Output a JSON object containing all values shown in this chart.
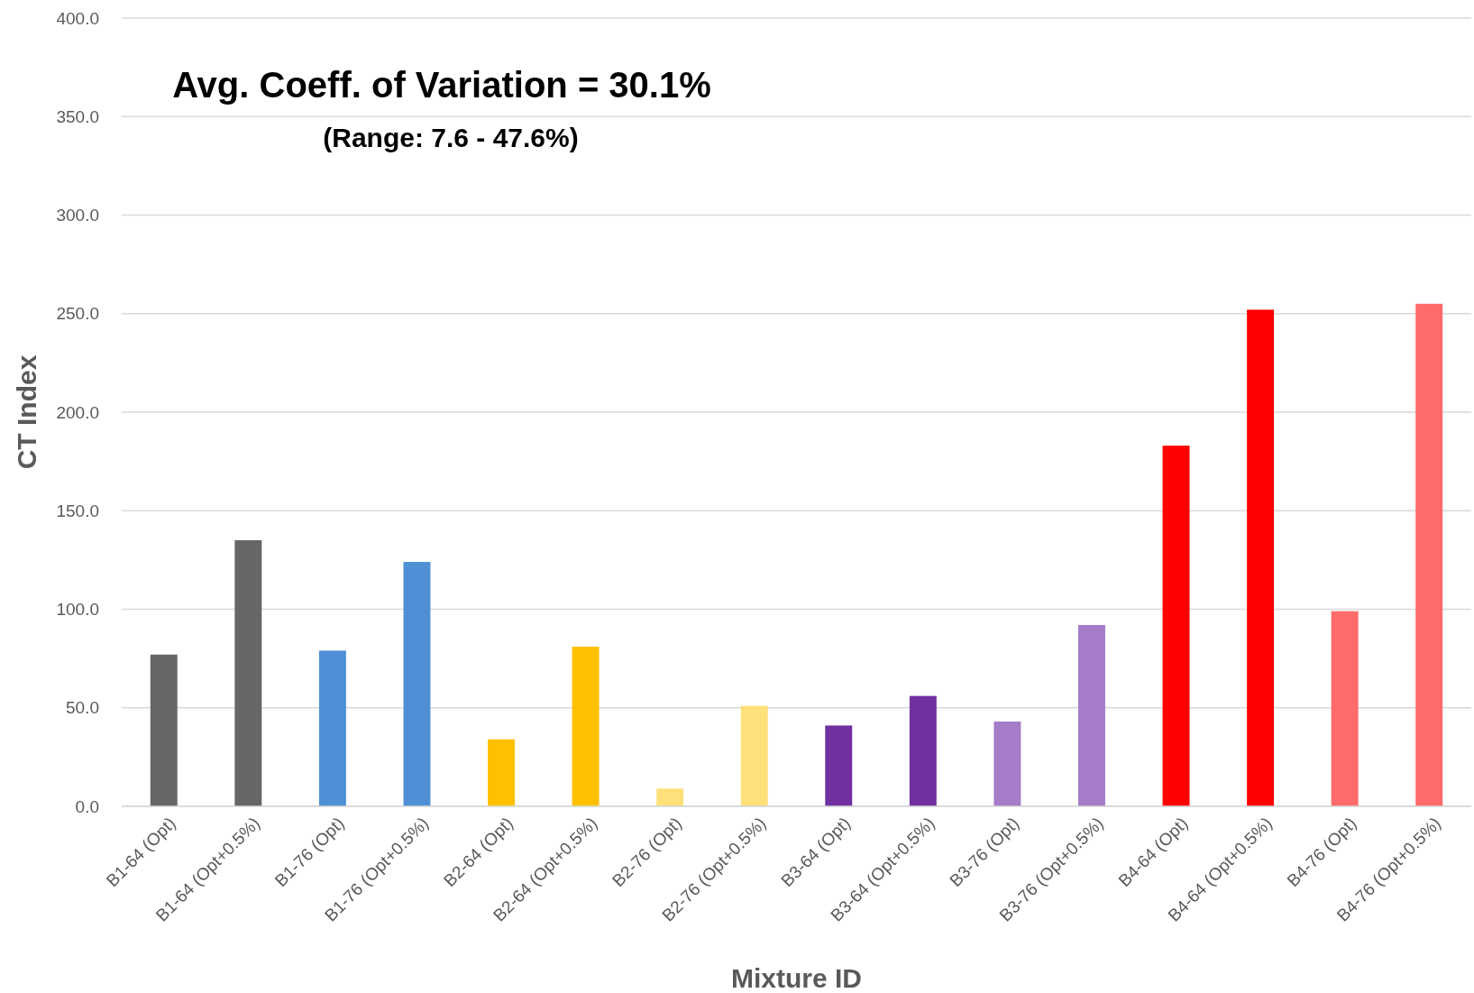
{
  "chart_data": {
    "type": "bar",
    "xlabel": "Mixture ID",
    "ylabel": "CT Index",
    "annotations": [
      "Avg. Coeff. of Variation = 30.1%",
      "(Range: 7.6 - 47.6%)"
    ],
    "categories": [
      "B1-64 (Opt)",
      "B1-64 (Opt+0.5%)",
      "B1-76 (Opt)",
      "B1-76 (Opt+0.5%)",
      "B2-64 (Opt)",
      "B2-64 (Opt+0.5%)",
      "B2-76 (Opt)",
      "B2-76 (Opt+0.5%)",
      "B3-64 (Opt)",
      "B3-64 (Opt+0.5%)",
      "B3-76 (Opt)",
      "B3-76 (Opt+0.5%)",
      "B4-64 (Opt)",
      "B4-64 (Opt+0.5%)",
      "B4-76 (Opt)",
      "B4-76 (Opt+0.5%)"
    ],
    "values": [
      77,
      135,
      79,
      124,
      34,
      81,
      9,
      51,
      41,
      56,
      43,
      92,
      183,
      252,
      99,
      255
    ],
    "colors": [
      "#666666",
      "#666666",
      "#4f8fd6",
      "#4f8fd6",
      "#ffc000",
      "#ffc000",
      "#ffe07a",
      "#ffe07a",
      "#7030a0",
      "#7030a0",
      "#a47cc8",
      "#a47cc8",
      "#ff0000",
      "#ff0000",
      "#ff6a6a",
      "#ff6a6a"
    ],
    "ylim": [
      0,
      400
    ],
    "yticks": [
      {
        "value": 0,
        "label": "0.0"
      },
      {
        "value": 50,
        "label": "50.0"
      },
      {
        "value": 100,
        "label": "100.0"
      },
      {
        "value": 150,
        "label": "150.0"
      },
      {
        "value": 200,
        "label": "200.0"
      },
      {
        "value": 250,
        "label": "250.0"
      },
      {
        "value": 300,
        "label": "300.0"
      },
      {
        "value": 350,
        "label": "350.0"
      },
      {
        "value": 400,
        "label": "400.0"
      }
    ],
    "grid": "y"
  }
}
